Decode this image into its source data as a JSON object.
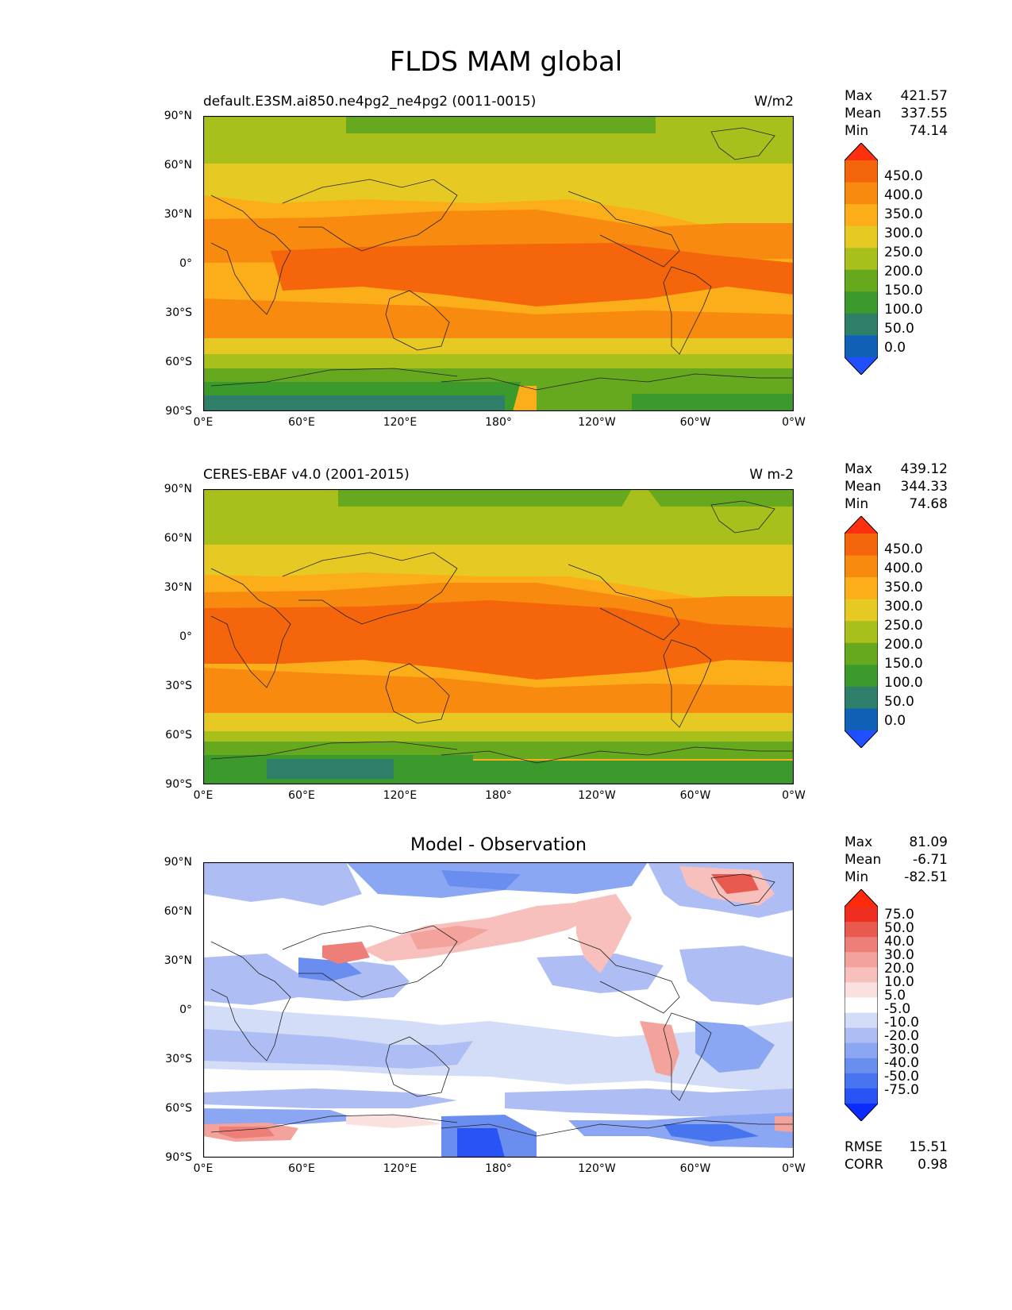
{
  "figure_title": "FLDS MAM global",
  "lat_labels": [
    "90°N",
    "60°N",
    "30°N",
    "0°",
    "30°S",
    "60°S",
    "90°S"
  ],
  "lon_labels": [
    "0°E",
    "60°E",
    "120°E",
    "180°",
    "120°W",
    "60°W",
    "0°W"
  ],
  "panels": [
    {
      "title": "default.E3SM.ai850.ne4pg2_ne4pg2 (0011-0015)",
      "units": "W/m2",
      "max": "421.57",
      "mean": "337.55",
      "min": "74.14",
      "colorbar_labels": [
        "450.0",
        "400.0",
        "350.0",
        "300.0",
        "250.0",
        "200.0",
        "150.0",
        "100.0",
        "50.0",
        "0.0"
      ]
    },
    {
      "title": "CERES-EBAF v4.0 (2001-2015)",
      "units": "W m-2",
      "max": "439.12",
      "mean": "344.33",
      "min": "74.68",
      "colorbar_labels": [
        "450.0",
        "400.0",
        "350.0",
        "300.0",
        "250.0",
        "200.0",
        "150.0",
        "100.0",
        "50.0",
        "0.0"
      ]
    },
    {
      "title": "Model - Observation",
      "max": "81.09",
      "mean": "-6.71",
      "min": "-82.51",
      "colorbar_labels": [
        "75.0",
        "50.0",
        "40.0",
        "30.0",
        "20.0",
        "10.0",
        "5.0",
        "-5.0",
        "-10.0",
        "-20.0",
        "-30.0",
        "-40.0",
        "-50.0",
        "-75.0"
      ],
      "rmse": "15.51",
      "corr": "0.98"
    }
  ],
  "stat_labels": {
    "max": "Max",
    "mean": "Mean",
    "min": "Min",
    "rmse": "RMSE",
    "corr": "CORR"
  },
  "abs_colors": [
    "#1f4fff",
    "#1060b8",
    "#2e7f6a",
    "#3b9a2b",
    "#66a91e",
    "#a9bf1c",
    "#e6c922",
    "#fbae19",
    "#f78a0f",
    "#f5650b",
    "#ff3010"
  ],
  "diff_colors": [
    "#0b2bff",
    "#2954f5",
    "#4775f0",
    "#6a8ef0",
    "#8ba6f2",
    "#aebef4",
    "#d4ddf8",
    "#ffffff",
    "#fbe0e0",
    "#f8c0bd",
    "#f4a29c",
    "#ee7f78",
    "#e85a50",
    "#f02e20",
    "#ff2a0a"
  ]
}
